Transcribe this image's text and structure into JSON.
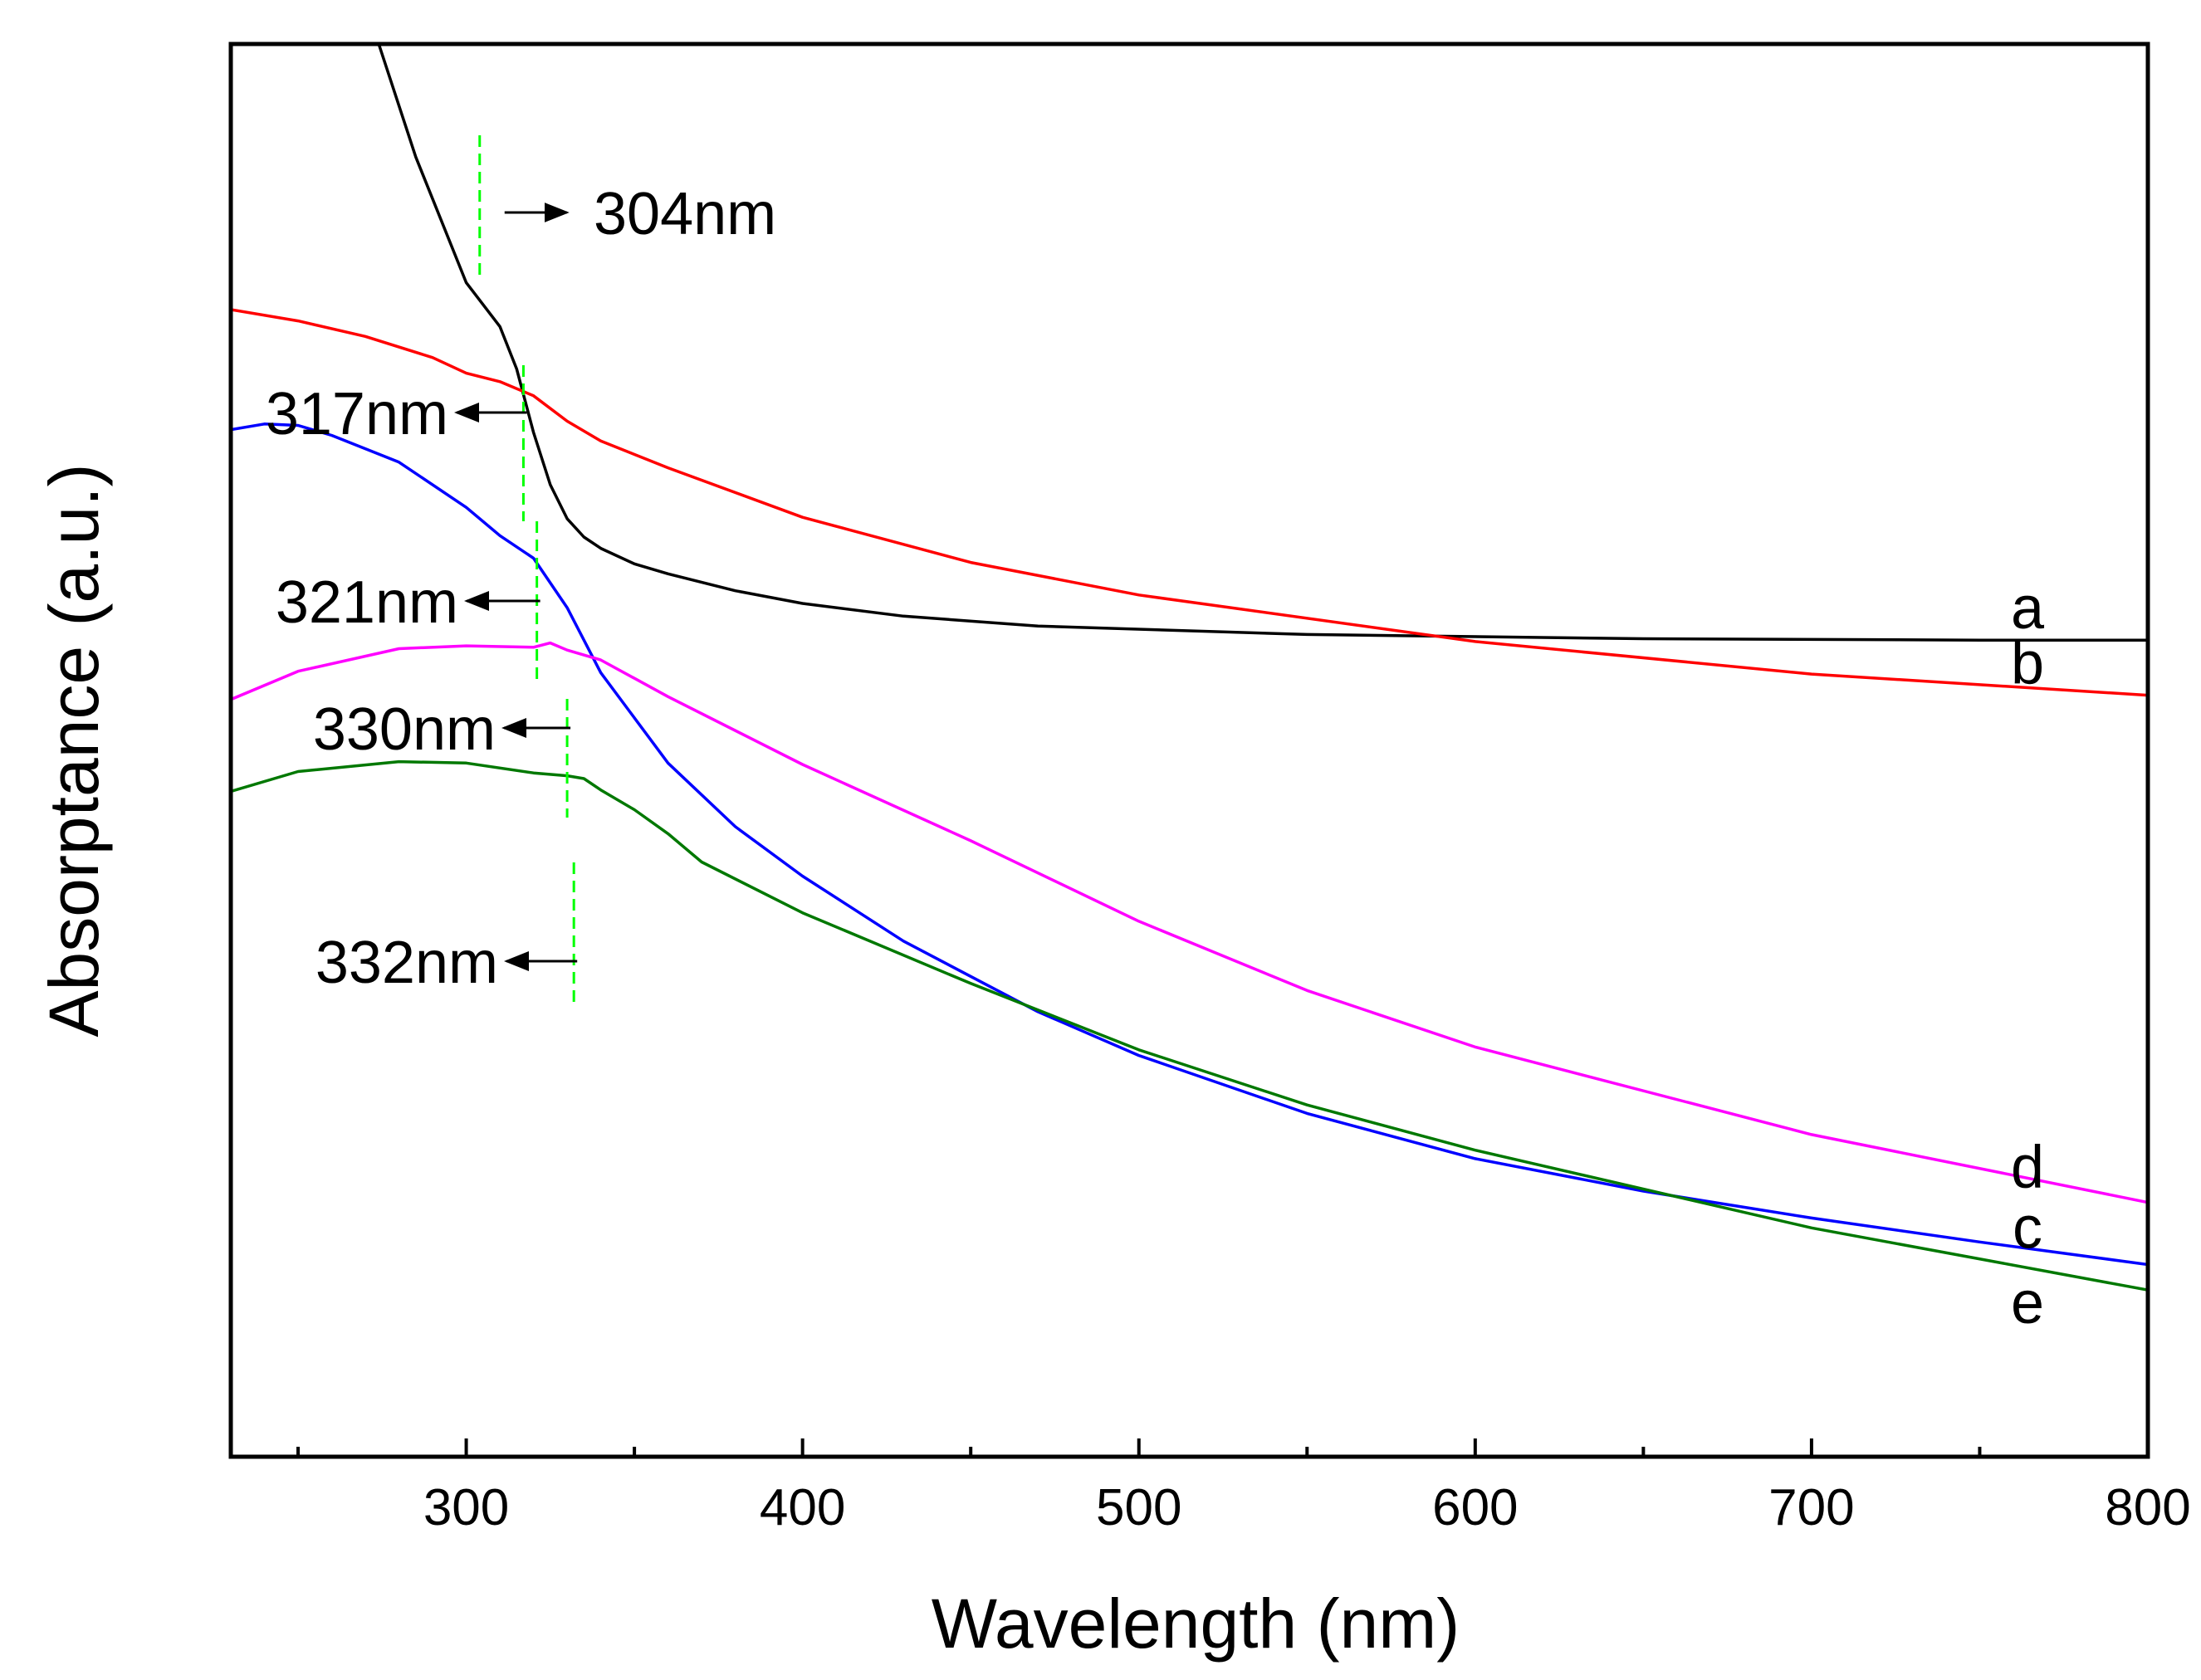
{
  "chart_data": {
    "type": "line",
    "title": "",
    "xlabel": "Wavelength (nm)",
    "ylabel": "Absorptance (a.u.)",
    "xlim": [
      230,
      800
    ],
    "ylim": [
      0,
      100
    ],
    "x_major_ticks": [
      300,
      400,
      500,
      600,
      700,
      800
    ],
    "x_minor_ticks": [
      250,
      350,
      450,
      550,
      650,
      750
    ],
    "grid": false,
    "legend": "none (curves labeled a-e at right edge)",
    "colors": {
      "a": "#000000",
      "b": "#ff0000",
      "c": "#0000ff",
      "d": "#ff00ff",
      "e": "#007800",
      "marker": "#00ff00"
    },
    "series": [
      {
        "name": "a",
        "x": [
          274,
          285,
          300,
          310,
          315,
          320,
          325,
          330,
          335,
          340,
          350,
          360,
          380,
          400,
          430,
          470,
          550,
          650,
          750,
          800
        ],
        "y": [
          100,
          92.0,
          83.1,
          80.0,
          77.0,
          72.5,
          68.8,
          66.4,
          65.1,
          64.3,
          63.2,
          62.5,
          61.3,
          60.4,
          59.5,
          58.8,
          58.2,
          57.9,
          57.8,
          57.8
        ]
      },
      {
        "name": "b",
        "x": [
          230,
          250,
          270,
          290,
          300,
          310,
          320,
          330,
          340,
          360,
          400,
          450,
          500,
          600,
          700,
          800
        ],
        "y": [
          81.2,
          80.4,
          79.3,
          77.8,
          76.7,
          76.1,
          75.1,
          73.3,
          71.9,
          70.0,
          66.5,
          63.3,
          61.0,
          57.7,
          55.4,
          53.9
        ]
      },
      {
        "name": "c",
        "x": [
          230,
          240,
          250,
          260,
          280,
          300,
          310,
          320,
          330,
          340,
          360,
          380,
          400,
          430,
          470,
          500,
          550,
          600,
          650,
          700,
          750,
          800
        ],
        "y": [
          72.7,
          73.1,
          73.0,
          72.3,
          70.4,
          67.2,
          65.2,
          63.6,
          60.1,
          55.5,
          49.1,
          44.6,
          41.1,
          36.5,
          31.5,
          28.4,
          24.3,
          21.1,
          18.8,
          16.9,
          15.2,
          13.6
        ]
      },
      {
        "name": "d",
        "x": [
          230,
          250,
          280,
          300,
          320,
          325,
          330,
          340,
          360,
          400,
          450,
          500,
          550,
          600,
          700,
          800
        ],
        "y": [
          53.6,
          55.6,
          57.2,
          57.4,
          57.3,
          57.6,
          57.1,
          56.4,
          53.8,
          49.0,
          43.6,
          37.9,
          33.0,
          29.0,
          22.8,
          18.0
        ]
      },
      {
        "name": "e",
        "x": [
          230,
          250,
          280,
          300,
          320,
          330,
          335,
          340,
          350,
          360,
          370,
          400,
          450,
          500,
          550,
          600,
          700,
          800
        ],
        "y": [
          47.1,
          48.5,
          49.2,
          49.1,
          48.4,
          48.2,
          48.0,
          47.2,
          45.8,
          44.1,
          42.1,
          38.5,
          33.5,
          28.8,
          24.9,
          21.7,
          16.2,
          11.8
        ]
      }
    ],
    "annotations": [
      {
        "label": "304nm",
        "wavelength": 304,
        "arrow": "right"
      },
      {
        "label": "317nm",
        "wavelength": 317,
        "arrow": "left"
      },
      {
        "label": "321nm",
        "wavelength": 321,
        "arrow": "left"
      },
      {
        "label": "330nm",
        "wavelength": 330,
        "arrow": "left"
      },
      {
        "label": "332nm",
        "wavelength": 332,
        "arrow": "left"
      }
    ]
  }
}
